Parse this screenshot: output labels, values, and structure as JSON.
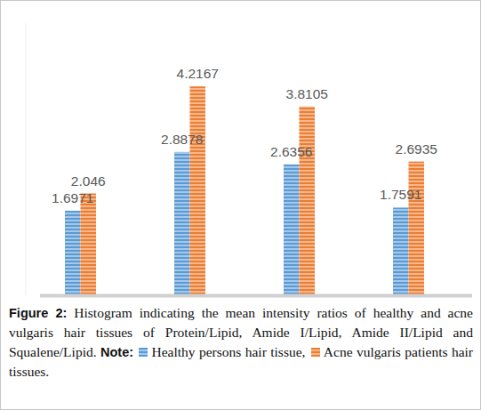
{
  "chart_data": {
    "type": "bar",
    "caption_label": "Figure 2:",
    "caption": "Histogram indicating the mean intensity ratios of healthy and acne vulgaris hair tissues of Protein/Lipid, Amide I/Lipid, Amide II/Lipid and Squalene/Lipid.",
    "note_label": "Note:",
    "categories": [
      null,
      null,
      null,
      null
    ],
    "series": [
      {
        "name": "Healthy persons hair tissue,",
        "color": "#5b9bd5",
        "values": [
          1.6971,
          2.8878,
          2.6356,
          1.7591
        ]
      },
      {
        "name": "Acne vulgaris patients hair tissues.",
        "color": "#ed7d31",
        "values": [
          2.046,
          4.2167,
          3.8105,
          2.6935
        ]
      }
    ],
    "ylim": [
      0,
      5.5
    ],
    "tick_labels": false,
    "data_labels": true,
    "grid": false
  }
}
